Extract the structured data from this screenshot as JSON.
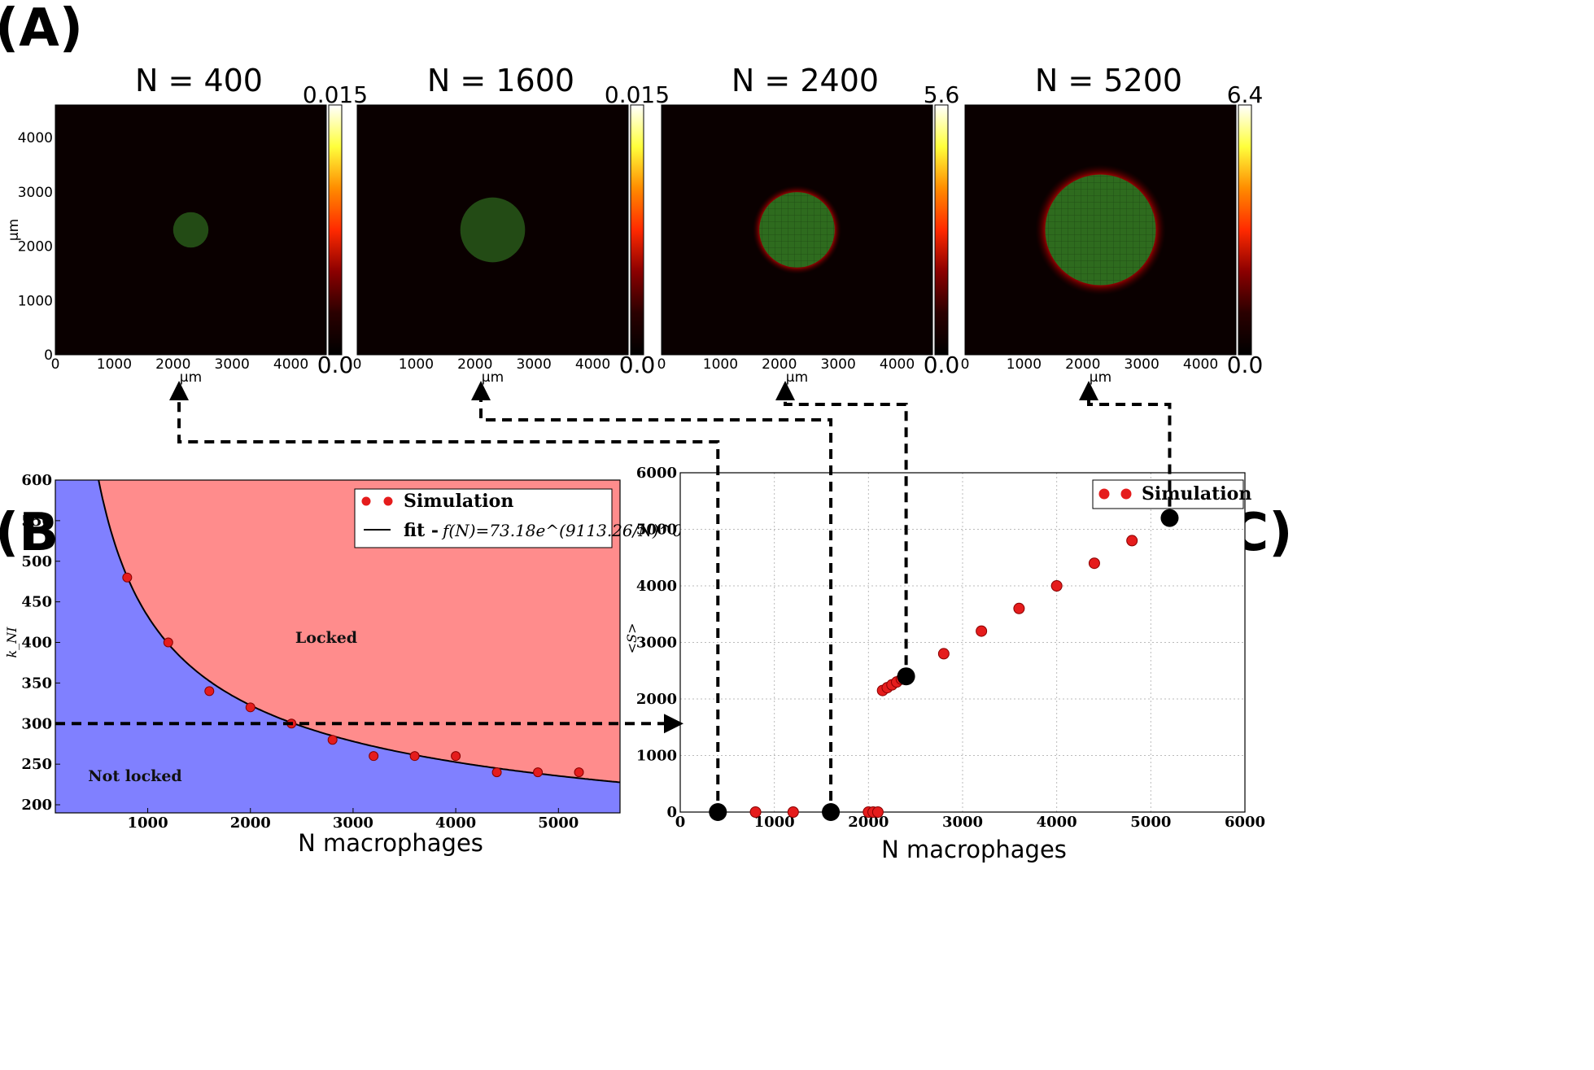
{
  "figure": {
    "labels": {
      "A": "(A)",
      "B": "(B)",
      "C": "(C)"
    }
  },
  "panel_a": {
    "unit_label": "µm",
    "tick_labels": [
      "0",
      "1000",
      "2000",
      "3000",
      "4000"
    ],
    "cmap": [
      "#000000",
      "#2a0000",
      "#8b0000",
      "#ff2a00",
      "#ff8c00",
      "#ffff3c",
      "#ffffff"
    ],
    "tissue_color": "#2e6b1e",
    "maps": [
      {
        "title": "N = 400",
        "cb_max": "0.015",
        "cb_min": "0.0",
        "blob_radius_um": 300,
        "halo": false
      },
      {
        "title": "N = 1600",
        "cb_max": "0.015",
        "cb_min": "0.0",
        "blob_radius_um": 550,
        "halo": false
      },
      {
        "title": "N = 2400",
        "cb_max": "5.6",
        "cb_min": "0.0",
        "blob_radius_um": 640,
        "halo": true
      },
      {
        "title": "N = 5200",
        "cb_max": "6.4",
        "cb_min": "0.0",
        "blob_radius_um": 940,
        "halo": true
      }
    ]
  },
  "chart_data": [
    {
      "panel": "B",
      "type": "scatter",
      "xlabel": "N macrophages",
      "ylabel": "k_NI",
      "xlim": [
        100,
        5600
      ],
      "ylim": [
        190,
        600
      ],
      "xticks": [
        "1000",
        "2000",
        "3000",
        "4000",
        "5000"
      ],
      "yticks": [
        "200",
        "250",
        "300",
        "350",
        "400",
        "450",
        "500",
        "550",
        "600"
      ],
      "series": [
        {
          "name": "Simulation",
          "color": "#e51c1c",
          "x": [
            800,
            1200,
            1600,
            2000,
            2400,
            2800,
            3200,
            3600,
            4000,
            4400,
            4800,
            5200
          ],
          "y": [
            480,
            400,
            340,
            320,
            300,
            280,
            260,
            260,
            260,
            240,
            240,
            240
          ]
        }
      ],
      "fit": {
        "name": "fit - ",
        "formula": "f(N)=73.18e^(9113.26/N)^0.26",
        "a": 73.18,
        "b": 9113.26,
        "p": 0.26
      },
      "regions": {
        "locked_label": "Locked",
        "locked_color": "#ff8c8c",
        "not_locked_label": "Not locked",
        "not_locked_color": "#8080ff"
      },
      "threshold_line_y": 300,
      "legend": "top-right"
    },
    {
      "panel": "C",
      "type": "scatter",
      "xlabel": "N macrophages",
      "ylabel": "<S>",
      "xlim": [
        0,
        6000
      ],
      "ylim": [
        0,
        6000
      ],
      "xticks": [
        "0",
        "1000",
        "2000",
        "3000",
        "4000",
        "5000",
        "6000"
      ],
      "yticks": [
        "0",
        "1000",
        "2000",
        "3000",
        "4000",
        "5000",
        "6000"
      ],
      "grid": true,
      "series": [
        {
          "name": "Simulation",
          "color": "#e51c1c",
          "x": [
            400,
            800,
            1200,
            1600,
            2000,
            2050,
            2100,
            2150,
            2200,
            2250,
            2300,
            2350,
            2400,
            2800,
            3200,
            3600,
            4000,
            4400,
            4800,
            5200
          ],
          "y": [
            0,
            0,
            0,
            0,
            0,
            0,
            0,
            2150,
            2200,
            2250,
            2300,
            2350,
            2400,
            2800,
            3200,
            3600,
            4000,
            4400,
            4800,
            5200
          ]
        }
      ],
      "highlighted": {
        "x": [
          400,
          1600,
          2400,
          5200
        ],
        "y": [
          0,
          0,
          2400,
          5200
        ],
        "color": "#000000"
      },
      "legend": "top-right"
    }
  ]
}
